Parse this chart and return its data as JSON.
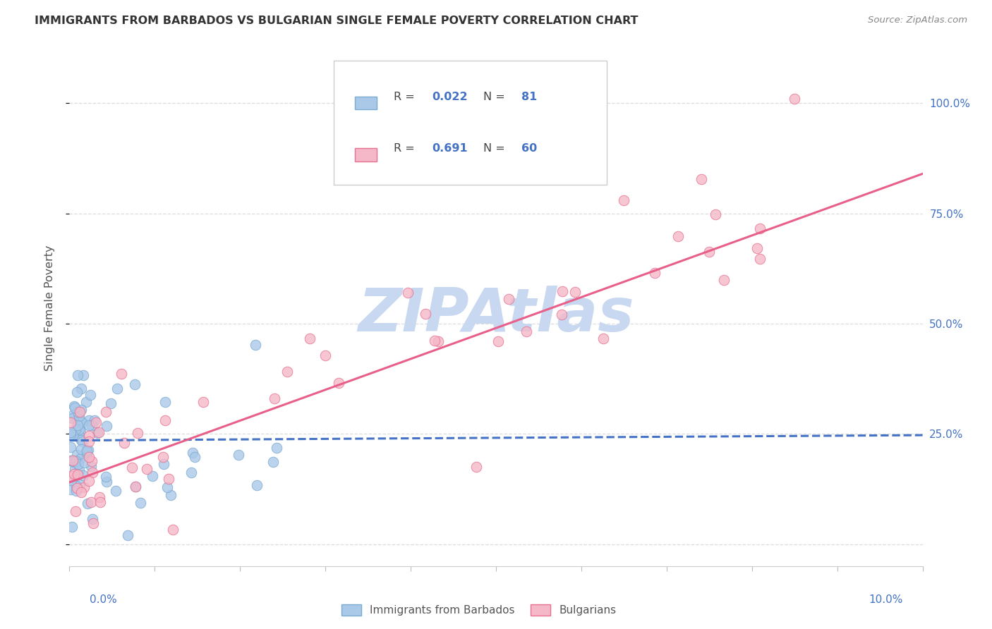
{
  "title": "IMMIGRANTS FROM BARBADOS VS BULGARIAN SINGLE FEMALE POVERTY CORRELATION CHART",
  "source": "Source: ZipAtlas.com",
  "ylabel": "Single Female Poverty",
  "xlim": [
    0.0,
    10.0
  ],
  "ylim": [
    -5.0,
    112.0
  ],
  "series": [
    {
      "name": "Immigrants from Barbados",
      "R": "0.022",
      "N": "81",
      "marker_color": "#aac8e8",
      "marker_edge": "#7aaad0",
      "line_color": "#4472c4",
      "line_style": "dashed"
    },
    {
      "name": "Bulgarians",
      "R": "0.691",
      "N": "60",
      "marker_color": "#f5b8c8",
      "marker_edge": "#e87090",
      "line_color": "#e8608a",
      "line_style": "solid"
    }
  ],
  "legend_R_color": "#4472c4",
  "legend_N_color": "#4472c4",
  "legend_label_color": "#444444",
  "watermark": "ZIPAtlas",
  "watermark_color": "#c8d8f0",
  "background_color": "#ffffff",
  "grid_color": "#dddddd",
  "axis_label_color": "#4472c4",
  "bottom_legend_color": "#555555"
}
